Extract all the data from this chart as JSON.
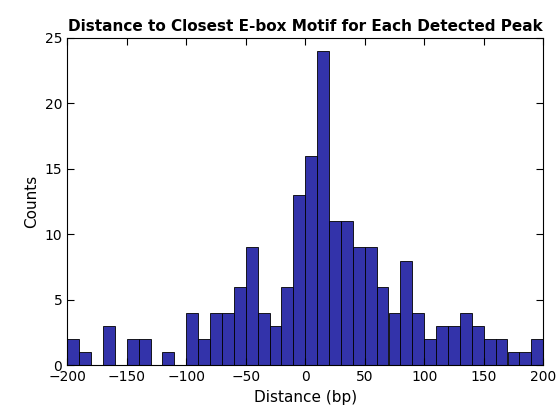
{
  "title": "Distance to Closest E-box Motif for Each Detected Peak",
  "xlabel": "Distance (bp)",
  "ylabel": "Counts",
  "xlim": [
    -200,
    200
  ],
  "ylim": [
    0,
    25
  ],
  "bin_width": 10,
  "bar_color": "#3333AA",
  "edge_color": "#000000",
  "background_color": "#ffffff",
  "bin_edges": [
    -200,
    -190,
    -180,
    -170,
    -160,
    -150,
    -140,
    -130,
    -120,
    -110,
    -100,
    -90,
    -80,
    -70,
    -60,
    -50,
    -40,
    -30,
    -20,
    -10,
    0,
    10,
    20,
    30,
    40,
    50,
    60,
    70,
    80,
    90,
    100,
    110,
    120,
    130,
    140,
    150,
    160,
    170,
    180,
    190,
    200
  ],
  "counts": [
    2,
    1,
    0,
    3,
    0,
    2,
    2,
    0,
    1,
    0,
    4,
    2,
    4,
    4,
    6,
    9,
    4,
    3,
    6,
    13,
    16,
    24,
    11,
    11,
    9,
    9,
    6,
    4,
    8,
    4,
    2,
    3,
    3,
    4,
    3,
    2,
    2,
    1,
    1,
    2
  ],
  "xticks": [
    -200,
    -150,
    -100,
    -50,
    0,
    50,
    100,
    150,
    200
  ],
  "yticks": [
    0,
    5,
    10,
    15,
    20,
    25
  ],
  "title_fontsize": 11,
  "axis_fontsize": 11,
  "tick_fontsize": 10
}
